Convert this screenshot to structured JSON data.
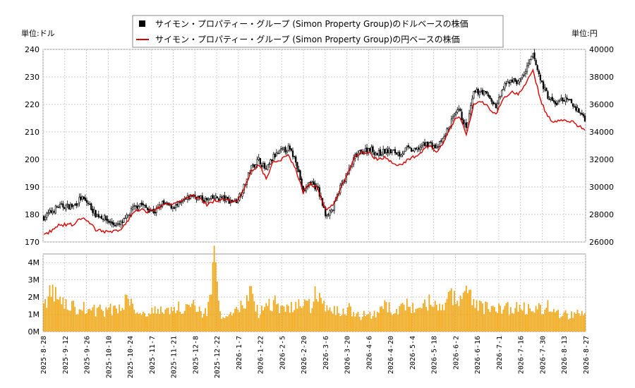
{
  "chart_data": {
    "type": "candlestick+line+bar",
    "legend": [
      {
        "label": "サイモン・プロパティー・グループ (Simon Property Group)のドルベースの株価",
        "color": "#000000",
        "marker": "square"
      },
      {
        "label": "サイモン・プロパティー・グループ (Simon Property Group)の円ベースの株価",
        "color": "#dd0000",
        "marker": "line"
      }
    ],
    "left_unit": "単位:ドル",
    "right_unit": "単位:円",
    "price_axis": {
      "min": 170,
      "max": 240,
      "ticks": [
        "170",
        "180",
        "190",
        "200",
        "210",
        "220",
        "230",
        "240"
      ]
    },
    "yen_axis": {
      "min": 26000,
      "max": 40000,
      "ticks": [
        "26000",
        "28000",
        "30000",
        "32000",
        "34000",
        "36000",
        "38000",
        "40000"
      ]
    },
    "volume_axis": {
      "min": 0,
      "max": 4500000,
      "ticks": [
        "0M",
        "1M",
        "2M",
        "3M",
        "4M"
      ]
    },
    "x_labels": [
      "2025-8-28",
      "2025-9-12",
      "2025-9-26",
      "2025-10-10",
      "2025-10-24",
      "2025-11-7",
      "2025-11-21",
      "2025-12-8",
      "2025-12-22",
      "2026-1-7",
      "2026-1-22",
      "2026-2-5",
      "2026-2-20",
      "2026-3-6",
      "2026-3-20",
      "2026-4-6",
      "2026-4-20",
      "2026-5-4",
      "2026-5-18",
      "2026-6-2",
      "2026-6-16",
      "2026-7-1",
      "2026-7-16",
      "2026-7-30",
      "2026-8-13",
      "2026-8-27"
    ],
    "usd_close_anchors": [
      [
        0,
        179
      ],
      [
        5,
        181
      ],
      [
        10,
        183
      ],
      [
        20,
        183
      ],
      [
        25,
        186
      ],
      [
        30,
        184
      ],
      [
        35,
        180
      ],
      [
        40,
        179
      ],
      [
        45,
        177
      ],
      [
        50,
        176
      ],
      [
        55,
        178
      ],
      [
        60,
        182
      ],
      [
        65,
        184
      ],
      [
        70,
        182
      ],
      [
        75,
        181
      ],
      [
        80,
        184
      ],
      [
        85,
        183
      ],
      [
        90,
        183
      ],
      [
        95,
        185
      ],
      [
        100,
        187
      ],
      [
        105,
        186
      ],
      [
        110,
        185
      ],
      [
        115,
        186
      ],
      [
        120,
        186
      ],
      [
        125,
        185
      ],
      [
        130,
        185
      ],
      [
        135,
        190
      ],
      [
        140,
        197
      ],
      [
        145,
        200
      ],
      [
        150,
        196
      ],
      [
        155,
        201
      ],
      [
        160,
        203
      ],
      [
        165,
        204
      ],
      [
        170,
        200
      ],
      [
        175,
        188
      ],
      [
        180,
        192
      ],
      [
        185,
        189
      ],
      [
        190,
        180
      ],
      [
        195,
        182
      ],
      [
        200,
        190
      ],
      [
        205,
        195
      ],
      [
        210,
        201
      ],
      [
        215,
        203
      ],
      [
        220,
        204
      ],
      [
        225,
        202
      ],
      [
        230,
        203
      ],
      [
        235,
        203
      ],
      [
        240,
        202
      ],
      [
        245,
        204
      ],
      [
        250,
        203
      ],
      [
        255,
        205
      ],
      [
        260,
        206
      ],
      [
        265,
        204
      ],
      [
        270,
        208
      ],
      [
        275,
        214
      ],
      [
        280,
        218
      ],
      [
        285,
        211
      ],
      [
        290,
        224
      ],
      [
        295,
        225
      ],
      [
        300,
        223
      ],
      [
        305,
        219
      ],
      [
        310,
        226
      ],
      [
        315,
        229
      ],
      [
        320,
        228
      ],
      [
        325,
        232
      ],
      [
        330,
        238
      ],
      [
        335,
        229
      ],
      [
        340,
        223
      ],
      [
        345,
        220
      ],
      [
        350,
        222
      ],
      [
        355,
        221
      ],
      [
        360,
        218
      ],
      [
        365,
        215
      ]
    ],
    "jpy_close_anchors": [
      [
        0,
        26500
      ],
      [
        5,
        26800
      ],
      [
        10,
        27200
      ],
      [
        20,
        27300
      ],
      [
        25,
        27700
      ],
      [
        30,
        27500
      ],
      [
        35,
        26900
      ],
      [
        40,
        26800
      ],
      [
        45,
        26700
      ],
      [
        50,
        26800
      ],
      [
        55,
        27300
      ],
      [
        60,
        28000
      ],
      [
        65,
        28400
      ],
      [
        70,
        28200
      ],
      [
        75,
        28300
      ],
      [
        80,
        28700
      ],
      [
        85,
        28800
      ],
      [
        90,
        28800
      ],
      [
        95,
        29100
      ],
      [
        100,
        29400
      ],
      [
        105,
        29100
      ],
      [
        110,
        28700
      ],
      [
        115,
        29000
      ],
      [
        120,
        29100
      ],
      [
        125,
        29000
      ],
      [
        130,
        29000
      ],
      [
        135,
        29800
      ],
      [
        140,
        31100
      ],
      [
        145,
        31600
      ],
      [
        150,
        30700
      ],
      [
        155,
        31800
      ],
      [
        160,
        32000
      ],
      [
        165,
        32300
      ],
      [
        170,
        31300
      ],
      [
        175,
        29600
      ],
      [
        180,
        30300
      ],
      [
        185,
        29800
      ],
      [
        190,
        28400
      ],
      [
        195,
        28600
      ],
      [
        200,
        29800
      ],
      [
        205,
        31000
      ],
      [
        210,
        32200
      ],
      [
        215,
        32600
      ],
      [
        220,
        32400
      ],
      [
        225,
        32000
      ],
      [
        230,
        32100
      ],
      [
        235,
        31800
      ],
      [
        240,
        31600
      ],
      [
        245,
        31900
      ],
      [
        250,
        32200
      ],
      [
        255,
        32600
      ],
      [
        260,
        33000
      ],
      [
        265,
        32500
      ],
      [
        270,
        33300
      ],
      [
        275,
        34500
      ],
      [
        280,
        35200
      ],
      [
        285,
        33900
      ],
      [
        290,
        36000
      ],
      [
        295,
        36200
      ],
      [
        300,
        35800
      ],
      [
        305,
        35200
      ],
      [
        310,
        36400
      ],
      [
        315,
        36900
      ],
      [
        320,
        36700
      ],
      [
        325,
        37500
      ],
      [
        330,
        38600
      ],
      [
        335,
        36300
      ],
      [
        340,
        35100
      ],
      [
        345,
        34700
      ],
      [
        350,
        34900
      ],
      [
        355,
        34800
      ],
      [
        360,
        34500
      ],
      [
        365,
        34200
      ]
    ],
    "volume_anchors": [
      [
        0,
        1600000
      ],
      [
        5,
        2300000
      ],
      [
        10,
        1900000
      ],
      [
        15,
        1500000
      ],
      [
        20,
        1400000
      ],
      [
        30,
        1300000
      ],
      [
        40,
        1200000
      ],
      [
        50,
        1300000
      ],
      [
        55,
        1900000
      ],
      [
        60,
        1700000
      ],
      [
        65,
        1000000
      ],
      [
        70,
        1200000
      ],
      [
        80,
        1200000
      ],
      [
        90,
        1400000
      ],
      [
        100,
        1500000
      ],
      [
        110,
        1000000
      ],
      [
        115,
        4400000
      ],
      [
        120,
        600000
      ],
      [
        125,
        900000
      ],
      [
        130,
        1300000
      ],
      [
        135,
        1500000
      ],
      [
        140,
        2400000
      ],
      [
        145,
        1100000
      ],
      [
        150,
        1500000
      ],
      [
        155,
        1700000
      ],
      [
        160,
        1400000
      ],
      [
        165,
        1300000
      ],
      [
        170,
        1600000
      ],
      [
        175,
        1500000
      ],
      [
        180,
        1500000
      ],
      [
        185,
        2400000
      ],
      [
        190,
        1300000
      ],
      [
        195,
        1200000
      ],
      [
        200,
        1100000
      ],
      [
        205,
        1400000
      ],
      [
        210,
        1000000
      ],
      [
        215,
        900000
      ],
      [
        220,
        1100000
      ],
      [
        225,
        900000
      ],
      [
        230,
        1500000
      ],
      [
        235,
        1200000
      ],
      [
        240,
        1300000
      ],
      [
        245,
        1500000
      ],
      [
        250,
        1300000
      ],
      [
        255,
        1200000
      ],
      [
        260,
        1800000
      ],
      [
        265,
        1300000
      ],
      [
        270,
        1400000
      ],
      [
        275,
        2200000
      ],
      [
        280,
        1500000
      ],
      [
        285,
        2500000
      ],
      [
        290,
        1800000
      ],
      [
        295,
        1500000
      ],
      [
        300,
        1300000
      ],
      [
        305,
        1200000
      ],
      [
        310,
        1500000
      ],
      [
        315,
        1300000
      ],
      [
        320,
        1400000
      ],
      [
        325,
        1300000
      ],
      [
        330,
        1500000
      ],
      [
        335,
        1300000
      ],
      [
        340,
        1500000
      ],
      [
        345,
        1000000
      ],
      [
        350,
        1000000
      ],
      [
        355,
        900000
      ],
      [
        360,
        1100000
      ],
      [
        365,
        900000
      ]
    ]
  }
}
